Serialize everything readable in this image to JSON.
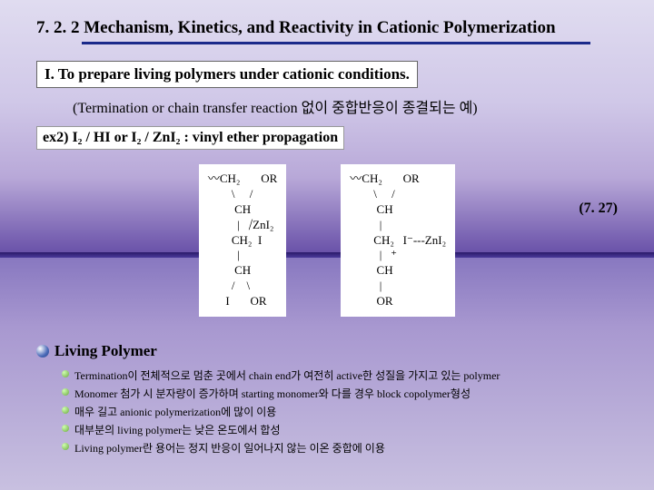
{
  "title": "7. 2. 2 Mechanism, Kinetics, and Reactivity in Cationic Polymerization",
  "section": "I. To prepare living polymers under cationic conditions.",
  "sub": "(Termination or chain transfer reaction 없이 중합반응이 종결되는 예)",
  "ex2_prefix": "ex2)",
  "ex2_body": "  I₂ / HI  or  I₂ / ZnI₂ : vinyl ether propagation",
  "eq": "(7. 27)",
  "chem1": {
    "l1": "〰CH₂       OR",
    "l2": "        \\     /",
    "l3": "         CH",
    "l4": "          |   ⧸ZnI₂",
    "l5": "        CH₂  I",
    "l6": "          |",
    "l7": "         CH",
    "l8": "        /    \\",
    "l9": "      I       OR"
  },
  "chem2": {
    "l1": "〰CH₂       OR",
    "l2": "        \\     /",
    "l3": "         CH",
    "l4": "          |",
    "l5": "        CH₂   I⁻---ZnI₂",
    "l6": "          |   ⁺",
    "l7": "         CH",
    "l8": "          |",
    "l9": "         OR"
  },
  "lp": "Living Polymer",
  "b1": "Termination이 전체적으로 멈춘 곳에서 chain end가 여전히 active한 성질을 가지고 있는 polymer",
  "b2": "Monomer 첨가 시 분자량이 증가하며 starting monomer와 다를 경우 block copolymer형성",
  "b3": "매우 길고 anionic polymerization에 많이 이용",
  "b4": "대부분의 living polymer는 낮은 온도에서 합성",
  "b5": "Living polymer란 용어는 정지 반응이 일어나지 않는 이온 중합에 이용"
}
